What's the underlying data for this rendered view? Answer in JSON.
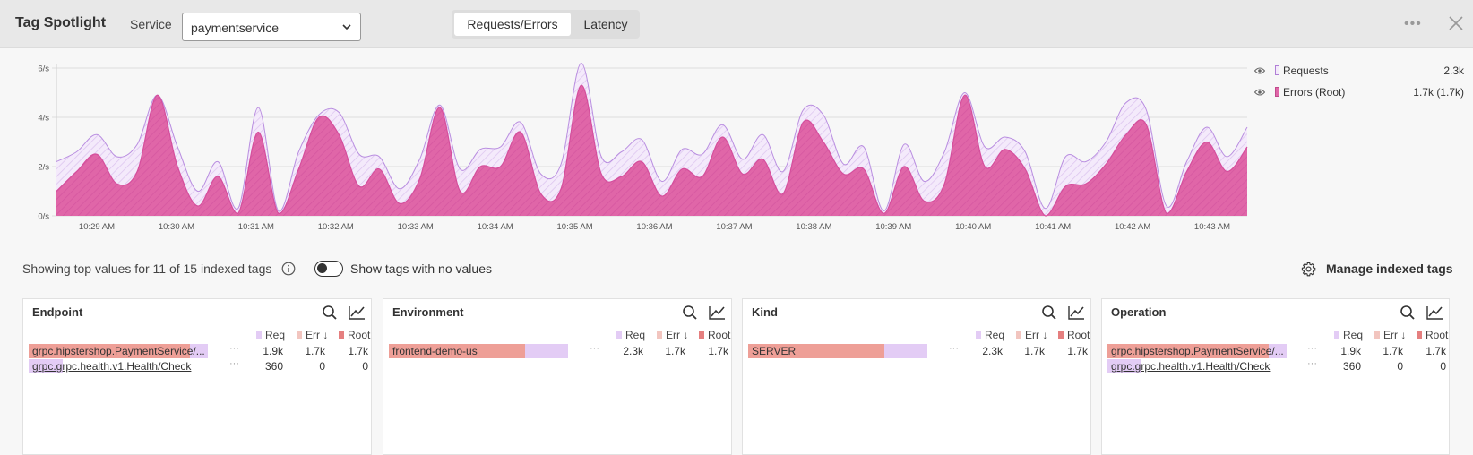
{
  "header": {
    "title": "Tag Spotlight",
    "service_label": "Service",
    "service_value": "paymentservice",
    "tabs": [
      {
        "label": "Requests/Errors",
        "active": true
      },
      {
        "label": "Latency",
        "active": false
      }
    ]
  },
  "chart_data": {
    "type": "area",
    "x": [
      "10:28:45",
      "10:29",
      "10:29:15",
      "10:29:30",
      "10:29:45",
      "10:30",
      "10:30:15",
      "10:30:30",
      "10:30:45",
      "10:31",
      "10:31:15",
      "10:31:30",
      "10:31:45",
      "10:32",
      "10:32:15",
      "10:32:30",
      "10:32:45",
      "10:33",
      "10:33:15",
      "10:33:30",
      "10:33:45",
      "10:34",
      "10:34:15",
      "10:34:30",
      "10:34:45",
      "10:35",
      "10:35:15",
      "10:35:30",
      "10:35:45",
      "10:36",
      "10:36:15",
      "10:36:30",
      "10:36:45",
      "10:37",
      "10:37:15",
      "10:37:30",
      "10:37:45",
      "10:38",
      "10:38:15",
      "10:38:30",
      "10:38:45",
      "10:39",
      "10:39:15",
      "10:39:30",
      "10:39:45",
      "10:40",
      "10:40:15",
      "10:40:30",
      "10:40:45",
      "10:41",
      "10:41:15",
      "10:41:30",
      "10:41:45",
      "10:42",
      "10:42:15",
      "10:42:30",
      "10:42:45",
      "10:43",
      "10:43:15",
      "10:43:30"
    ],
    "x_tick_labels": [
      "10:29 AM",
      "10:30 AM",
      "10:31 AM",
      "10:32 AM",
      "10:33 AM",
      "10:34 AM",
      "10:35 AM",
      "10:36 AM",
      "10:37 AM",
      "10:38 AM",
      "10:39 AM",
      "10:40 AM",
      "10:41 AM",
      "10:42 AM",
      "10:43 AM"
    ],
    "y_tick_labels": [
      "0/s",
      "2/s",
      "4/s",
      "6/s"
    ],
    "ylim": [
      0,
      6
    ],
    "grid": true,
    "legend_position": "right",
    "series": [
      {
        "name": "Requests",
        "total": "2.3k",
        "color": "#b07fd6",
        "values": [
          2.2,
          2.6,
          3.3,
          2.4,
          2.9,
          4.9,
          2.8,
          1.0,
          2.2,
          0.3,
          4.4,
          0.2,
          2.6,
          4.1,
          4.2,
          2.5,
          2.4,
          1.1,
          2.3,
          4.5,
          1.9,
          2.7,
          2.8,
          3.8,
          1.7,
          2.1,
          6.2,
          2.4,
          2.6,
          3.1,
          1.4,
          2.7,
          2.5,
          3.7,
          2.3,
          3.3,
          1.8,
          4.3,
          4.1,
          2.1,
          2.8,
          0.2,
          2.9,
          1.4,
          2.6,
          5.0,
          2.8,
          3.2,
          2.6,
          0.3,
          2.4,
          2.2,
          3.0,
          4.6,
          4.3,
          0.4,
          2.2,
          3.6,
          2.4,
          3.6
        ]
      },
      {
        "name": "Errors (Root)",
        "total": "1.7k (1.7k)",
        "color": "#e066a8",
        "values": [
          1.0,
          1.8,
          2.5,
          1.3,
          1.8,
          4.9,
          2.0,
          0.4,
          1.6,
          0.1,
          3.4,
          0.1,
          1.9,
          4.0,
          3.3,
          1.2,
          1.9,
          0.5,
          1.5,
          4.4,
          1.0,
          2.0,
          2.0,
          3.4,
          0.9,
          1.1,
          5.3,
          1.7,
          1.6,
          2.2,
          0.8,
          1.9,
          1.6,
          3.2,
          1.7,
          2.3,
          0.9,
          3.8,
          3.0,
          1.7,
          1.9,
          0.1,
          2.0,
          0.6,
          1.3,
          4.9,
          2.0,
          2.7,
          1.9,
          0.0,
          1.2,
          1.3,
          2.1,
          3.3,
          3.7,
          0.1,
          1.8,
          3.0,
          1.8,
          2.8
        ]
      }
    ]
  },
  "legend": {
    "items": [
      {
        "label": "Requests",
        "value": "2.3k"
      },
      {
        "label": "Errors (Root)",
        "value": "1.7k (1.7k)"
      }
    ]
  },
  "tags_bar": {
    "summary": "Showing top values for 11 of 15 indexed tags",
    "toggle_label": "Show tags with no values",
    "manage_label": "Manage indexed tags"
  },
  "colors": {
    "req": "#e3ccf5",
    "err": "#f2c5bf",
    "root": "#e57f7f",
    "accent": "#e066a8"
  },
  "panels": [
    {
      "title": "Endpoint",
      "h_req": "Req",
      "h_err": "Err",
      "h_root": "Root",
      "rows": [
        {
          "name": "grpc.hipstershop.PaymentService/...",
          "req": "1.9k",
          "err": "1.7k",
          "root": "1.7k",
          "req_frac": 1.0,
          "err_frac": 0.9
        },
        {
          "name": "grpc.grpc.health.v1.Health/Check",
          "req": "360",
          "err": "0",
          "root": "0",
          "req_frac": 0.19,
          "err_frac": 0.0
        }
      ]
    },
    {
      "title": "Environment",
      "h_req": "Req",
      "h_err": "Err",
      "h_root": "Root",
      "rows": [
        {
          "name": "frontend-demo-us",
          "req": "2.3k",
          "err": "1.7k",
          "root": "1.7k",
          "req_frac": 1.0,
          "err_frac": 0.76
        }
      ]
    },
    {
      "title": "Kind",
      "h_req": "Req",
      "h_err": "Err",
      "h_root": "Root",
      "rows": [
        {
          "name": "SERVER",
          "req": "2.3k",
          "err": "1.7k",
          "root": "1.7k",
          "req_frac": 1.0,
          "err_frac": 0.76
        }
      ]
    },
    {
      "title": "Operation",
      "h_req": "Req",
      "h_err": "Err",
      "h_root": "Root",
      "rows": [
        {
          "name": "grpc.hipstershop.PaymentService/...",
          "req": "1.9k",
          "err": "1.7k",
          "root": "1.7k",
          "req_frac": 1.0,
          "err_frac": 0.9
        },
        {
          "name": "grpc.grpc.health.v1.Health/Check",
          "req": "360",
          "err": "0",
          "root": "0",
          "req_frac": 0.19,
          "err_frac": 0.0
        }
      ]
    }
  ]
}
